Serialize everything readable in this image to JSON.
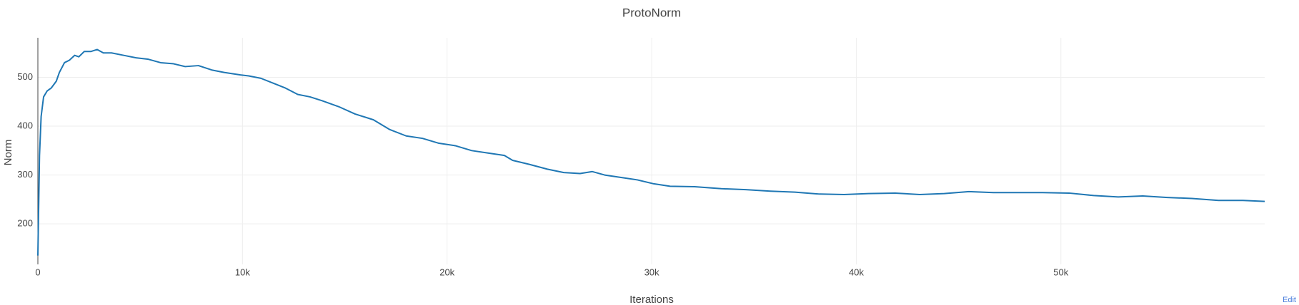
{
  "chart_data": {
    "type": "line",
    "title": "ProtoNorm",
    "x_label": "Iterations",
    "y_label": "Norm",
    "edit_link": "Edit",
    "x": [
      0,
      80,
      160,
      280,
      450,
      650,
      900,
      1050,
      1300,
      1540,
      1800,
      2000,
      2270,
      2600,
      2900,
      3200,
      3600,
      4200,
      4800,
      5400,
      6000,
      6600,
      7200,
      7850,
      8500,
      9100,
      9900,
      10300,
      10900,
      11500,
      12100,
      12700,
      13300,
      13900,
      14700,
      15500,
      16400,
      17200,
      18000,
      18800,
      19600,
      20400,
      21200,
      22000,
      22800,
      23200,
      24000,
      24900,
      25700,
      26500,
      27100,
      27700,
      28500,
      29300,
      30100,
      30900,
      32100,
      33400,
      34600,
      35800,
      37000,
      38200,
      39400,
      40600,
      41900,
      43100,
      44300,
      45500,
      46700,
      47900,
      49100,
      50400,
      51600,
      52800,
      54000,
      55200,
      56400,
      57700,
      58900,
      59960
    ],
    "series": [
      {
        "name": "ProtoNorm",
        "color": "#1f77b4",
        "values": [
          135,
          340,
          420,
          460,
          472,
          478,
          492,
          510,
          530,
          535,
          545,
          542,
          553,
          553,
          557,
          550,
          550,
          545,
          540,
          537,
          530,
          528,
          522,
          524,
          515,
          510,
          505,
          503,
          498,
          488,
          478,
          465,
          460,
          452,
          440,
          425,
          413,
          393,
          380,
          375,
          365,
          360,
          350,
          345,
          340,
          330,
          322,
          312,
          305,
          303,
          307,
          300,
          295,
          290,
          282,
          277,
          276,
          272,
          270,
          267,
          265,
          261,
          260,
          262,
          263,
          260,
          262,
          266,
          264,
          264,
          264,
          263,
          258,
          255,
          257,
          254,
          252,
          248,
          248,
          246
        ]
      }
    ],
    "xlim": [
      0,
      59960
    ],
    "ylim": [
      117,
      581
    ],
    "xticks": [
      0,
      {
        "value": 10000,
        "label": "10k"
      },
      {
        "value": 20000,
        "label": "20k"
      },
      {
        "value": 30000,
        "label": "30k"
      },
      {
        "value": 40000,
        "label": "40k"
      },
      {
        "value": 50000,
        "label": "50k"
      }
    ],
    "yticks": [
      200,
      300,
      400,
      500
    ],
    "grid": true
  }
}
